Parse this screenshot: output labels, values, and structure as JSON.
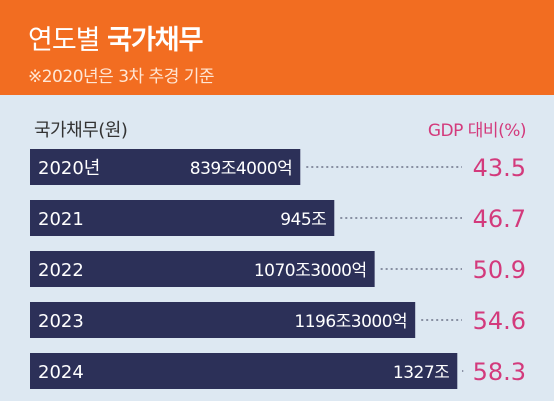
{
  "header": {
    "title_light": "연도별",
    "title_bold": "국가채무",
    "subtitle": "※2020년은 3차 추경 기준"
  },
  "columns": {
    "left": "국가채무(원)",
    "right": "GDP 대비(%)"
  },
  "colors": {
    "header_bg": "#f26d21",
    "page_bg": "#dde8f2",
    "bar": "#2c3058",
    "gdp_text": "#d33a7c"
  },
  "chart_data": {
    "type": "bar",
    "orientation": "horizontal",
    "categories": [
      "2020년",
      "2021",
      "2022",
      "2023",
      "2024"
    ],
    "series": [
      {
        "values": [
          839.4,
          945,
          1070.3,
          1196.3,
          1327
        ],
        "labels": [
          "839조4000억",
          "945조",
          "1070조3000억",
          "1196조3000억",
          "1327조"
        ]
      },
      {
        "values": [
          43.5,
          46.7,
          50.9,
          54.6,
          58.3
        ],
        "labels": [
          "43.5",
          "46.7",
          "50.9",
          "54.6",
          "58.3"
        ]
      }
    ]
  }
}
